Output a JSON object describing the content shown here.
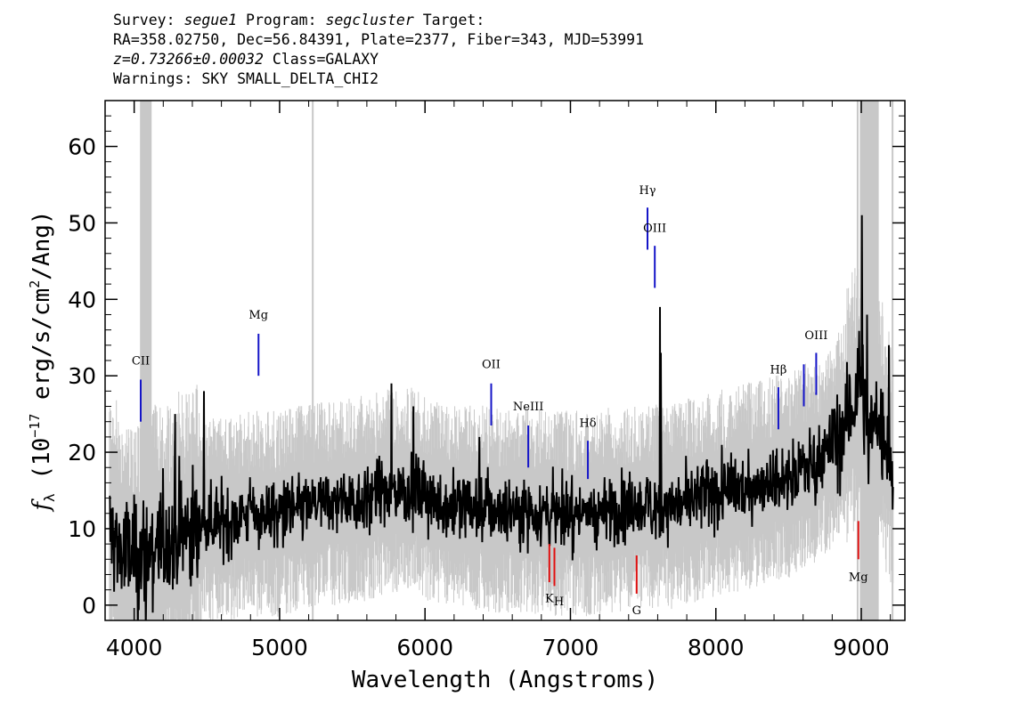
{
  "header": {
    "line1": {
      "survey_label": "Survey: ",
      "survey": "segue1",
      "program_label": " Program: ",
      "program": "segcluster",
      "target_label": " Target:"
    },
    "line2": "RA=358.02750, Dec=56.84391, Plate=2377, Fiber=343, MJD=53991",
    "line3": {
      "z": "z=0.73266±0.00032",
      "class_text": " Class=GALAXY"
    },
    "line4": "Warnings: SKY SMALL_DELTA_CHI2"
  },
  "chart_data": {
    "type": "line",
    "xlabel": "Wavelength (Angstroms)",
    "ylabel": {
      "prefix": "f",
      "sub": "λ",
      "unit_start": " (10",
      "exp": "−17",
      "unit_mid": " erg/s/cm",
      "exp2": "2",
      "unit_end": "/Ang)"
    },
    "xlim": [
      3800,
      9300
    ],
    "ylim": [
      -2,
      66
    ],
    "xticks": [
      4000,
      5000,
      6000,
      7000,
      8000,
      9000
    ],
    "yticks": [
      0,
      10,
      20,
      30,
      40,
      50,
      60
    ],
    "masked_regions": [
      [
        4040,
        4120
      ],
      [
        8990,
        9120
      ]
    ],
    "sky_lines": [
      5228,
      8975,
      9215
    ],
    "series": [
      {
        "name": "flux",
        "anchors": [
          [
            3830,
            10
          ],
          [
            3900,
            7
          ],
          [
            4000,
            6
          ],
          [
            4100,
            7
          ],
          [
            4200,
            8
          ],
          [
            4300,
            9
          ],
          [
            4400,
            10
          ],
          [
            4500,
            11
          ],
          [
            4600,
            11
          ],
          [
            4800,
            12
          ],
          [
            5000,
            12
          ],
          [
            5200,
            13
          ],
          [
            5400,
            13.5
          ],
          [
            5600,
            14
          ],
          [
            5800,
            15
          ],
          [
            5950,
            15
          ],
          [
            6100,
            13
          ],
          [
            6300,
            13
          ],
          [
            6500,
            12.5
          ],
          [
            6700,
            12.5
          ],
          [
            6900,
            12
          ],
          [
            7100,
            12
          ],
          [
            7300,
            12.5
          ],
          [
            7500,
            13
          ],
          [
            7700,
            13
          ],
          [
            7900,
            14
          ],
          [
            8100,
            15
          ],
          [
            8300,
            16
          ],
          [
            8500,
            17
          ],
          [
            8700,
            19
          ],
          [
            8800,
            21
          ],
          [
            8900,
            24
          ],
          [
            9000,
            30
          ],
          [
            9050,
            22
          ],
          [
            9100,
            25
          ],
          [
            9150,
            22
          ],
          [
            9220,
            18
          ]
        ],
        "features": [
          [
            4080,
            -3,
            0,
            "dip"
          ],
          [
            5920,
            26,
            0,
            "spike"
          ],
          [
            6375,
            22,
            0,
            "spike"
          ],
          [
            7615,
            39,
            0,
            "spike"
          ],
          [
            7622,
            33,
            0,
            "spike"
          ],
          [
            9005,
            51,
            0,
            "spike"
          ],
          [
            9040,
            38,
            0,
            "spike"
          ],
          [
            9190,
            34,
            0,
            "spike"
          ],
          [
            4280,
            25,
            0,
            "spike"
          ],
          [
            4480,
            28,
            0,
            "spike"
          ],
          [
            5770,
            29,
            0,
            "spike"
          ]
        ],
        "noise": 3.2
      },
      {
        "name": "error",
        "scale": 9
      }
    ]
  },
  "lines": [
    {
      "label": "CII",
      "x": 4045,
      "y1": 24,
      "y2": 29.5,
      "color": "#1515c8",
      "label_y": 31.5,
      "pos": "above"
    },
    {
      "label": "Mg",
      "x": 4855,
      "y1": 30,
      "y2": 35.5,
      "color": "#1515c8",
      "label_y": 37.5,
      "pos": "above"
    },
    {
      "label": "OII",
      "x": 6455,
      "y1": 23.5,
      "y2": 29,
      "color": "#1515c8",
      "label_y": 31,
      "pos": "above"
    },
    {
      "label": "NeIII",
      "x": 6710,
      "y1": 18,
      "y2": 23.5,
      "color": "#1515c8",
      "label_y": 25.5,
      "pos": "above"
    },
    {
      "label": "Hδ",
      "x": 7120,
      "y1": 16.5,
      "y2": 21.5,
      "color": "#1515c8",
      "label_y": 23.3,
      "pos": "above"
    },
    {
      "label": "Hγ",
      "x": 7530,
      "y1": 46.5,
      "y2": 52,
      "color": "#1515c8",
      "label_y": 53.8,
      "pos": "above"
    },
    {
      "label": "OIII",
      "x": 7580,
      "y1": 41.5,
      "y2": 47,
      "color": "#1515c8",
      "label_y": 48.8,
      "pos": "above"
    },
    {
      "label": "Hβ",
      "x": 8430,
      "y1": 23,
      "y2": 28.5,
      "color": "#1515c8",
      "label_y": 30.3,
      "pos": "above"
    },
    {
      "label": "",
      "x": 8605,
      "y1": 26,
      "y2": 31.5,
      "color": "#1515c8",
      "pos": "none"
    },
    {
      "label": "OIII",
      "x": 8690,
      "y1": 27.5,
      "y2": 33,
      "color": "#1515c8",
      "label_y": 34.8,
      "pos": "above"
    },
    {
      "label": "K",
      "x": 6855,
      "y1": 3,
      "y2": 8,
      "color": "#e01010",
      "label_y": 0.4,
      "pos": "below"
    },
    {
      "label": "H",
      "x": 6890,
      "y1": 2.5,
      "y2": 7.5,
      "color": "#e01010",
      "label_y": 0,
      "pos": "below",
      "dx": 5
    },
    {
      "label": "G",
      "x": 7455,
      "y1": 1.5,
      "y2": 6.5,
      "color": "#e01010",
      "label_y": -1.2,
      "pos": "below"
    },
    {
      "label": "Mg",
      "x": 8980,
      "y1": 6,
      "y2": 11,
      "color": "#e01010",
      "label_y": 3.2,
      "pos": "below"
    }
  ]
}
